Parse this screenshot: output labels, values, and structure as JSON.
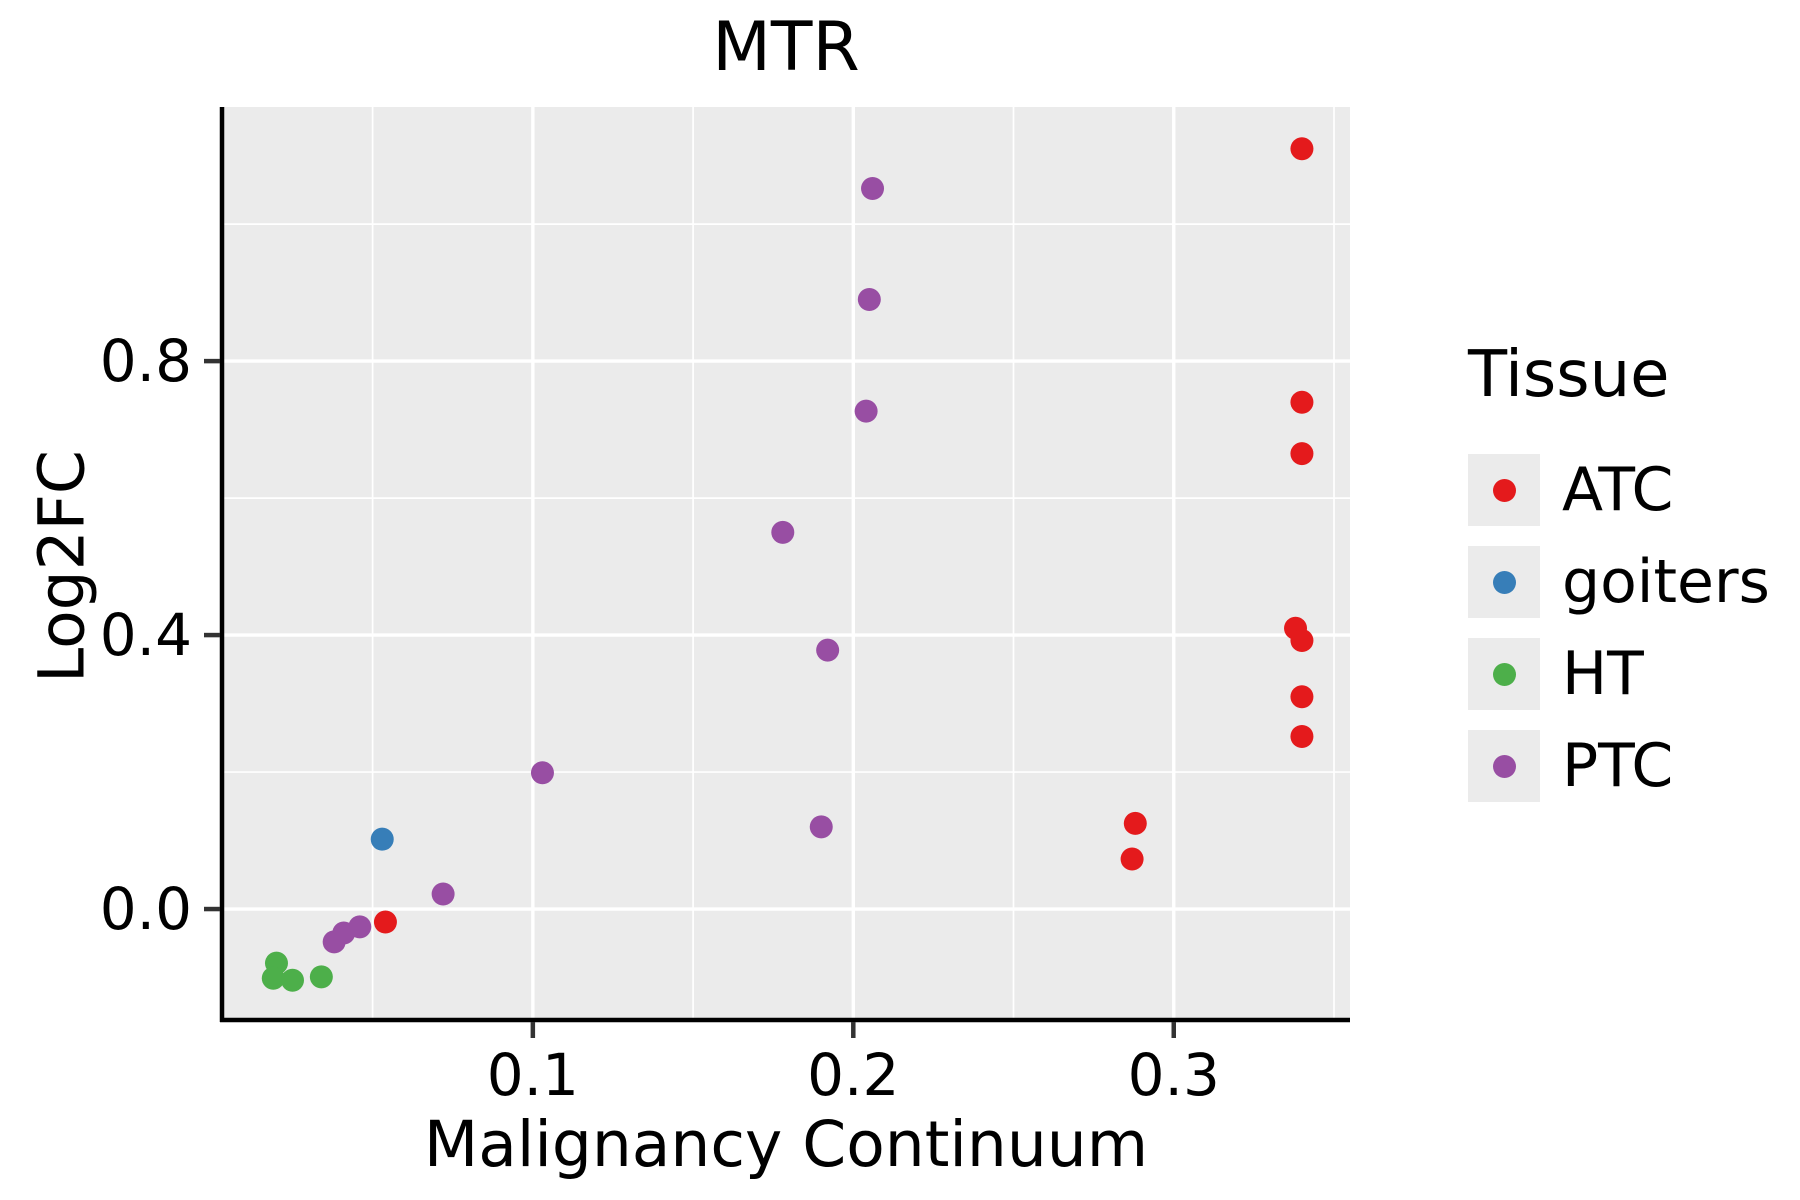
{
  "chart_data": {
    "type": "scatter",
    "title": "MTR",
    "xlabel": "Malignancy Continuum",
    "ylabel": "Log2FC",
    "xlim": [
      0.003,
      0.355
    ],
    "ylim": [
      -0.162,
      1.171
    ],
    "x_ticks": [
      {
        "value": 0.1,
        "label": "0.1"
      },
      {
        "value": 0.2,
        "label": "0.2"
      },
      {
        "value": 0.3,
        "label": "0.3"
      }
    ],
    "y_ticks": [
      {
        "value": 0.0,
        "label": "0.0"
      },
      {
        "value": 0.4,
        "label": "0.4"
      },
      {
        "value": 0.8,
        "label": "0.8"
      }
    ],
    "x_minor_ticks": [
      0.05,
      0.15,
      0.25,
      0.35
    ],
    "y_minor_ticks": [
      0.2,
      0.6,
      1.0
    ],
    "grid": "major and minor white gridlines on gray panel",
    "panel_bg": "#EBEBEB",
    "grid_color": "#FFFFFF",
    "axis_color": "#000000",
    "tick_color": "#333333",
    "text_color": "#000000",
    "legend": {
      "title": "Tissue",
      "position": "right",
      "key_bg": "#EBEBEB"
    },
    "series": [
      {
        "name": "ATC",
        "color": "#E41A1C",
        "points": [
          [
            0.054,
            -0.019
          ],
          [
            0.287,
            0.073
          ],
          [
            0.288,
            0.125
          ],
          [
            0.338,
            0.41
          ],
          [
            0.34,
            0.392
          ],
          [
            0.34,
            1.11
          ],
          [
            0.34,
            0.74
          ],
          [
            0.34,
            0.665
          ],
          [
            0.34,
            0.31
          ],
          [
            0.34,
            0.252
          ]
        ]
      },
      {
        "name": "goiters",
        "color": "#377EB8",
        "points": [
          [
            0.053,
            0.102
          ]
        ]
      },
      {
        "name": "HT",
        "color": "#4DAF4A",
        "points": [
          [
            0.02,
            -0.079
          ],
          [
            0.019,
            -0.101
          ],
          [
            0.025,
            -0.104
          ],
          [
            0.034,
            -0.099
          ]
        ]
      },
      {
        "name": "PTC",
        "color": "#984EA3",
        "points": [
          [
            0.038,
            -0.048
          ],
          [
            0.041,
            -0.035
          ],
          [
            0.046,
            -0.026
          ],
          [
            0.072,
            0.022
          ],
          [
            0.103,
            0.199
          ],
          [
            0.19,
            0.12
          ],
          [
            0.192,
            0.378
          ],
          [
            0.178,
            0.55
          ],
          [
            0.204,
            0.727
          ],
          [
            0.205,
            0.89
          ],
          [
            0.206,
            1.052
          ]
        ]
      }
    ]
  }
}
